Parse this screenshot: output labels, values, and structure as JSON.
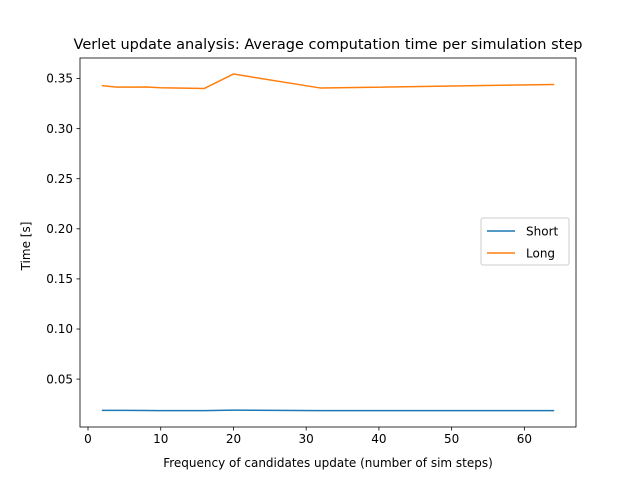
{
  "chart_data": {
    "type": "line",
    "title": "Verlet update analysis: Average computation time per simulation step",
    "xlabel": "Frequency of candidates update (number of sim steps)",
    "ylabel": "Time [s]",
    "xlim": [
      -1.1,
      67.1
    ],
    "ylim": [
      0.0022,
      0.3705
    ],
    "xticks": [
      0,
      10,
      20,
      30,
      40,
      50,
      60
    ],
    "yticks": [
      0.05,
      0.1,
      0.15,
      0.2,
      0.25,
      0.3,
      0.35
    ],
    "ytick_labels": [
      "0.05",
      "0.10",
      "0.15",
      "0.20",
      "0.25",
      "0.30",
      "0.35"
    ],
    "grid": false,
    "legend_position": "center-right",
    "series": [
      {
        "name": "Short",
        "color": "#1f77b4",
        "x": [
          2,
          4,
          8,
          10,
          16,
          20,
          32,
          64
        ],
        "y": [
          0.0188,
          0.0188,
          0.0187,
          0.0186,
          0.0186,
          0.019,
          0.0186,
          0.0186
        ]
      },
      {
        "name": "Long",
        "color": "#ff7f0e",
        "x": [
          2,
          4,
          8,
          10,
          16,
          20,
          32,
          64
        ],
        "y": [
          0.3428,
          0.3414,
          0.3416,
          0.3408,
          0.3401,
          0.3545,
          0.3405,
          0.3441
        ]
      }
    ]
  }
}
